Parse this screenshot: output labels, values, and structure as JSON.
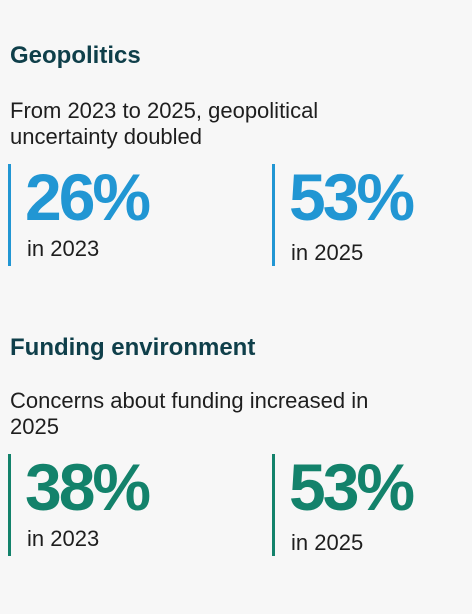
{
  "geopolitics": {
    "title": "Geopolitics",
    "subtitle": "From 2023 to 2025, geopolitical uncertainty doubled",
    "stats": [
      {
        "value": "26%",
        "label": "in 2023"
      },
      {
        "value": "53%",
        "label": "in 2025"
      }
    ],
    "accent_color": "#2196d3"
  },
  "funding": {
    "title": "Funding environment",
    "subtitle": "Concerns about funding increased in 2025",
    "stats": [
      {
        "value": "38%",
        "label": "in 2023"
      },
      {
        "value": "53%",
        "label": "in 2025"
      }
    ],
    "accent_color": "#13826b"
  },
  "colors": {
    "title": "#0f3f4a",
    "text": "#1e1e1e",
    "background": "#f7f7f7"
  }
}
